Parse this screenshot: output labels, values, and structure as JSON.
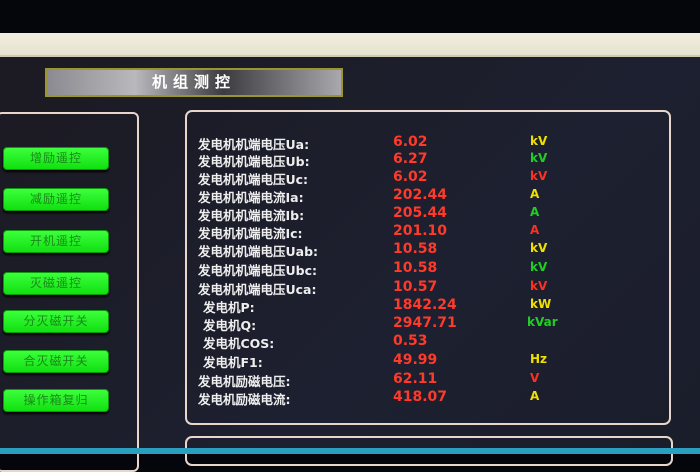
{
  "title": "机组测控",
  "buttons": [
    "增励遥控",
    "减励遥控",
    "开机遥控",
    "灭磁遥控",
    "分灭磁开关",
    "合灭磁开关",
    "操作箱复归"
  ],
  "rows": [
    {
      "label": "发电机机端电压Ua:",
      "value": "6.02",
      "unit": "kV",
      "unit_color": "#f0e000"
    },
    {
      "label": "发电机机端电压Ub:",
      "value": "6.27",
      "unit": "kV",
      "unit_color": "#20d020"
    },
    {
      "label": "发电机机端电压Uc:",
      "value": "6.02",
      "unit": "kV",
      "unit_color": "#ff3020"
    },
    {
      "label": "发电机机端电流Ia:",
      "value": "202.44",
      "unit": "A",
      "unit_color": "#f0e000"
    },
    {
      "label": "发电机机端电流Ib:",
      "value": "205.44",
      "unit": "A",
      "unit_color": "#20d020"
    },
    {
      "label": "发电机机端电流Ic:",
      "value": "201.10",
      "unit": "A",
      "unit_color": "#ff3020"
    },
    {
      "label": "发电机机端电压Uab:",
      "value": "10.58",
      "unit": "kV",
      "unit_color": "#f0e000"
    },
    {
      "label": "发电机机端电压Ubc:",
      "value": "10.58",
      "unit": "kV",
      "unit_color": "#20d020"
    },
    {
      "label": "发电机机端电压Uca:",
      "value": "10.57",
      "unit": "kV",
      "unit_color": "#ff3020"
    },
    {
      "label": "发电机P:",
      "value": "1842.24",
      "unit": "kW",
      "unit_color": "#f0e000"
    },
    {
      "label": "发电机Q:",
      "value": "2947.71",
      "unit": "kVar",
      "unit_color": "#20d020"
    },
    {
      "label": "发电机COS:",
      "value": "0.53",
      "unit": "",
      "unit_color": "#ff3020"
    },
    {
      "label": "发电机F1:",
      "value": "49.99",
      "unit": "Hz",
      "unit_color": "#f0e000"
    },
    {
      "label": "发电机励磁电压:",
      "value": "62.11",
      "unit": "V",
      "unit_color": "#ff3020"
    },
    {
      "label": "发电机励磁电流:",
      "value": "418.07",
      "unit": "A",
      "unit_color": "#f0e000"
    }
  ]
}
